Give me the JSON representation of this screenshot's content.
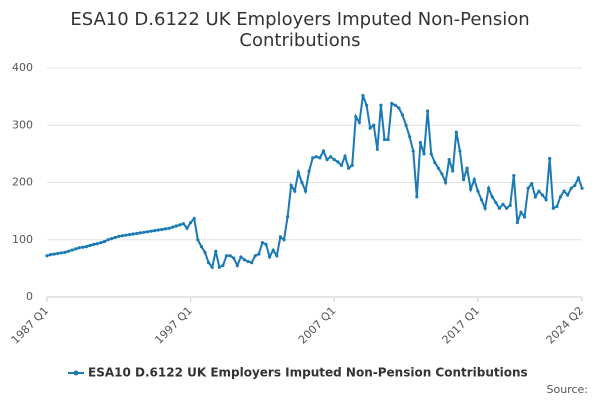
{
  "chart_data": {
    "type": "line",
    "title": [
      "ESA10 D.6122 UK Employers Imputed Non-Pension",
      "Contributions"
    ],
    "source": "Source:",
    "categories": [
      "1987 Q1",
      null,
      null,
      null,
      null,
      null,
      null,
      null,
      null,
      null,
      null,
      null,
      null,
      null,
      null,
      null,
      null,
      null,
      null,
      null,
      null,
      null,
      null,
      null,
      null,
      null,
      null,
      null,
      null,
      null,
      null,
      null,
      null,
      null,
      null,
      null,
      null,
      null,
      null,
      null,
      "1997 Q1",
      null,
      null,
      null,
      null,
      null,
      null,
      null,
      null,
      null,
      null,
      null,
      null,
      null,
      null,
      null,
      null,
      null,
      null,
      null,
      null,
      null,
      null,
      null,
      null,
      null,
      null,
      null,
      null,
      null,
      null,
      null,
      null,
      null,
      null,
      null,
      null,
      null,
      null,
      null,
      "2007 Q1",
      null,
      null,
      null,
      null,
      null,
      null,
      null,
      null,
      null,
      null,
      null,
      null,
      null,
      null,
      null,
      null,
      null,
      null,
      null,
      null,
      null,
      null,
      null,
      null,
      null,
      null,
      null,
      null,
      null,
      null,
      null,
      null,
      null,
      null,
      null,
      null,
      null,
      null,
      null,
      "2017 Q1",
      null,
      null,
      null,
      null,
      null,
      null,
      null,
      null,
      null,
      null,
      null,
      null,
      null,
      null,
      null,
      null,
      null,
      null,
      null,
      null,
      null,
      null,
      null,
      null,
      null,
      null,
      null,
      null,
      "2024 Q2"
    ],
    "series": [
      {
        "name": "ESA10 D.6122 UK Employers Imputed Non-Pension Contributions",
        "color": "#1a7ab5",
        "values": [
          72,
          74,
          75,
          76,
          77,
          78,
          80,
          82,
          84,
          86,
          87,
          88,
          90,
          92,
          93,
          95,
          97,
          100,
          102,
          104,
          106,
          107,
          108,
          109,
          110,
          111,
          112,
          113,
          114,
          115,
          116,
          117,
          118,
          119,
          120,
          122,
          124,
          126,
          128,
          120,
          130,
          137,
          100,
          88,
          78,
          60,
          52,
          80,
          52,
          55,
          72,
          72,
          68,
          55,
          70,
          65,
          62,
          60,
          72,
          75,
          95,
          92,
          70,
          82,
          72,
          105,
          100,
          140,
          195,
          185,
          218,
          200,
          185,
          220,
          243,
          245,
          243,
          255,
          240,
          245,
          240,
          236,
          230,
          246,
          225,
          230,
          315,
          305,
          352,
          335,
          295,
          300,
          258,
          335,
          275,
          275,
          338,
          335,
          330,
          318,
          300,
          280,
          255,
          175,
          270,
          250,
          325,
          250,
          235,
          225,
          215,
          200,
          240,
          220,
          288,
          255,
          205,
          225,
          188,
          205,
          185,
          170,
          155,
          190,
          175,
          165,
          155,
          162,
          155,
          160,
          212,
          130,
          148,
          140,
          190,
          198,
          175,
          185,
          178,
          170,
          242,
          155,
          158,
          175,
          185,
          178,
          190,
          195,
          208,
          190
        ]
      }
    ],
    "ylim": [
      0,
      400
    ],
    "yticks": [
      0,
      100,
      200,
      300,
      400
    ],
    "grid": true
  }
}
